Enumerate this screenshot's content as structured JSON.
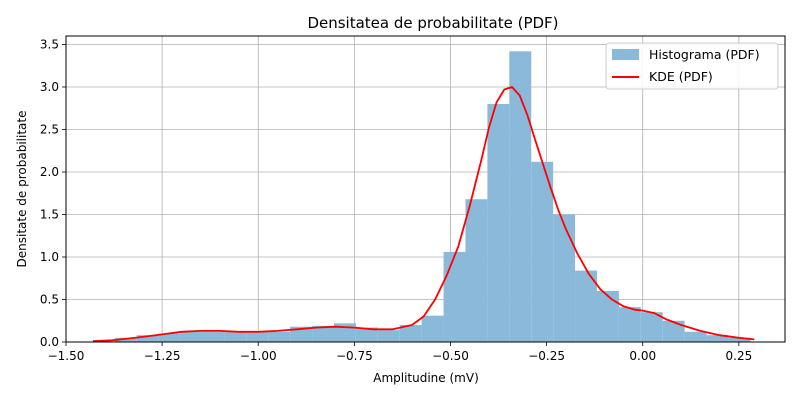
{
  "chart_data": {
    "type": "bar",
    "title": "Densitatea de probabilitate (PDF)",
    "xlabel": "Amplitudine (mV)",
    "ylabel": "Densitate de probabilitate",
    "xlim": [
      -1.5,
      0.37
    ],
    "ylim": [
      0,
      3.6
    ],
    "xticks": [
      -1.5,
      -1.25,
      -1.0,
      -0.75,
      -0.5,
      -0.25,
      0.0,
      0.25
    ],
    "xtick_labels": [
      "−1.50",
      "−1.25",
      "−1.00",
      "−0.75",
      "−0.50",
      "−0.25",
      "0.00",
      "0.25"
    ],
    "yticks": [
      0.0,
      0.5,
      1.0,
      1.5,
      2.0,
      2.5,
      3.0,
      3.5
    ],
    "ytick_labels": [
      "0.0",
      "0.5",
      "1.0",
      "1.5",
      "2.0",
      "2.5",
      "3.0",
      "3.5"
    ],
    "grid": true,
    "legend_position": "top-right",
    "histogram": {
      "name": "Histograma (PDF)",
      "color": "#8bb9da",
      "bin_edges": [
        -1.43,
        -1.373,
        -1.316,
        -1.259,
        -1.202,
        -1.145,
        -1.088,
        -1.031,
        -0.974,
        -0.917,
        -0.86,
        -0.803,
        -0.746,
        -0.689,
        -0.632,
        -0.575,
        -0.518,
        -0.461,
        -0.404,
        -0.347,
        -0.29,
        -0.233,
        -0.176,
        -0.119,
        -0.062,
        -0.005,
        0.052,
        0.109,
        0.166,
        0.223,
        0.28
      ],
      "values": [
        0.0,
        0.05,
        0.08,
        0.1,
        0.12,
        0.12,
        0.12,
        0.12,
        0.12,
        0.18,
        0.19,
        0.22,
        0.17,
        0.14,
        0.2,
        0.31,
        1.06,
        1.68,
        2.8,
        3.42,
        2.12,
        1.5,
        0.84,
        0.6,
        0.41,
        0.35,
        0.25,
        0.12,
        0.08,
        0.05
      ]
    },
    "kde": {
      "name": "KDE (PDF)",
      "color": "#ff0000",
      "x": [
        -1.43,
        -1.38,
        -1.34,
        -1.3,
        -1.25,
        -1.2,
        -1.15,
        -1.1,
        -1.05,
        -1.0,
        -0.95,
        -0.9,
        -0.85,
        -0.8,
        -0.75,
        -0.7,
        -0.65,
        -0.6,
        -0.57,
        -0.54,
        -0.51,
        -0.48,
        -0.45,
        -0.42,
        -0.4,
        -0.38,
        -0.36,
        -0.34,
        -0.32,
        -0.3,
        -0.28,
        -0.26,
        -0.24,
        -0.22,
        -0.2,
        -0.17,
        -0.14,
        -0.11,
        -0.08,
        -0.05,
        -0.02,
        0.0,
        0.03,
        0.06,
        0.1,
        0.15,
        0.2,
        0.25,
        0.29
      ],
      "y": [
        0.01,
        0.02,
        0.04,
        0.06,
        0.09,
        0.12,
        0.13,
        0.13,
        0.12,
        0.12,
        0.13,
        0.15,
        0.17,
        0.18,
        0.17,
        0.15,
        0.15,
        0.2,
        0.3,
        0.5,
        0.78,
        1.12,
        1.6,
        2.14,
        2.52,
        2.82,
        2.97,
        3.0,
        2.9,
        2.67,
        2.38,
        2.1,
        1.82,
        1.56,
        1.33,
        1.04,
        0.8,
        0.62,
        0.5,
        0.42,
        0.38,
        0.37,
        0.34,
        0.27,
        0.2,
        0.13,
        0.08,
        0.05,
        0.03
      ]
    }
  }
}
